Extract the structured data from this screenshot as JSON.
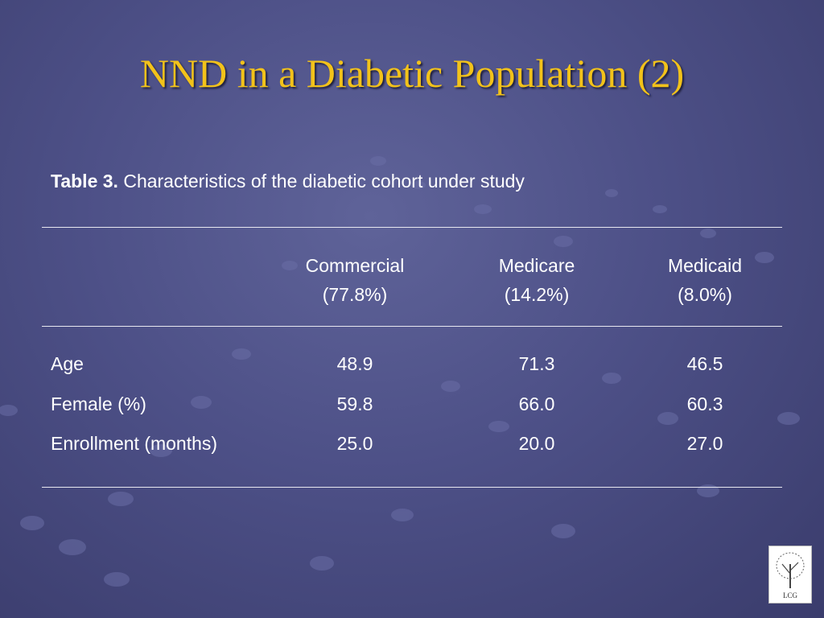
{
  "title": "NND in a Diabetic Population (2)",
  "caption": {
    "label": "Table 3.",
    "text": "Characteristics of the diabetic cohort under study"
  },
  "table": {
    "columns": [
      {
        "name": "Commercial",
        "share": "(77.8%)"
      },
      {
        "name": "Medicare",
        "share": "(14.2%)"
      },
      {
        "name": "Medicaid",
        "share": "(8.0%)"
      }
    ],
    "rows": [
      {
        "label": "Age",
        "values": [
          "48.9",
          "71.3",
          "46.5"
        ]
      },
      {
        "label": "Female (%)",
        "values": [
          "59.8",
          "66.0",
          "60.3"
        ]
      },
      {
        "label": "Enrollment (months)",
        "values": [
          "25.0",
          "20.0",
          "27.0"
        ]
      }
    ]
  },
  "logo": "LCG"
}
